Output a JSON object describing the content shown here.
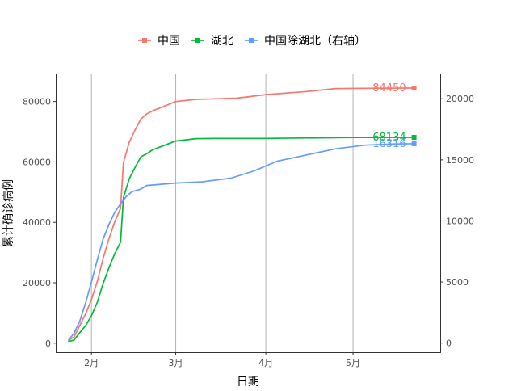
{
  "chart_data": {
    "type": "line",
    "title": "",
    "xlabel": "日期",
    "ylabel": "累计确诊病例",
    "x_range": [
      "2020-01-20",
      "2020-05-31"
    ],
    "x_ticks": [
      {
        "date": "2020-02-01",
        "label": "2月"
      },
      {
        "date": "2020-03-01",
        "label": "3月"
      },
      {
        "date": "2020-04-01",
        "label": "4月"
      },
      {
        "date": "2020-05-01",
        "label": "5月"
      }
    ],
    "ylim_left": [
      -3000,
      89000
    ],
    "yticks_left": [
      0,
      20000,
      40000,
      60000,
      80000
    ],
    "ylim_right": [
      -750,
      22000
    ],
    "yticks_right": [
      0,
      5000,
      10000,
      15000,
      20000
    ],
    "grid": {
      "vertical_major": true,
      "horizontal": false
    },
    "legend": {
      "position": "top",
      "labels": [
        "中国",
        "湖北",
        "中国除湖北（右轴）"
      ]
    },
    "colors": {
      "china": "#F8766D",
      "hubei": "#00BA38",
      "ex_hubei": "#619CFF"
    },
    "series": [
      {
        "name": "中国",
        "axis": "left",
        "color": "#F8766D",
        "end_label": "84450",
        "points": [
          [
            "2020-01-24",
            900
          ],
          [
            "2020-01-26",
            2000
          ],
          [
            "2020-01-28",
            5900
          ],
          [
            "2020-01-30",
            9700
          ],
          [
            "2020-02-01",
            14400
          ],
          [
            "2020-02-03",
            20400
          ],
          [
            "2020-02-05",
            28000
          ],
          [
            "2020-02-07",
            34500
          ],
          [
            "2020-02-09",
            40200
          ],
          [
            "2020-02-11",
            44600
          ],
          [
            "2020-02-12",
            59800
          ],
          [
            "2020-02-14",
            66500
          ],
          [
            "2020-02-16",
            70600
          ],
          [
            "2020-02-18",
            74200
          ],
          [
            "2020-02-20",
            75900
          ],
          [
            "2020-02-22",
            76900
          ],
          [
            "2020-02-25",
            78000
          ],
          [
            "2020-03-01",
            80000
          ],
          [
            "2020-03-08",
            80700
          ],
          [
            "2020-03-15",
            80900
          ],
          [
            "2020-03-22",
            81100
          ],
          [
            "2020-04-01",
            82300
          ],
          [
            "2020-04-15",
            83300
          ],
          [
            "2020-04-25",
            84300
          ],
          [
            "2020-05-10",
            84400
          ],
          [
            "2020-05-22",
            84450
          ]
        ]
      },
      {
        "name": "湖北",
        "axis": "left",
        "color": "#00BA38",
        "end_label": "68134",
        "points": [
          [
            "2020-01-24",
            550
          ],
          [
            "2020-01-26",
            1000
          ],
          [
            "2020-01-28",
            3500
          ],
          [
            "2020-01-30",
            5800
          ],
          [
            "2020-02-01",
            9100
          ],
          [
            "2020-02-03",
            13500
          ],
          [
            "2020-02-05",
            19700
          ],
          [
            "2020-02-07",
            24900
          ],
          [
            "2020-02-09",
            29600
          ],
          [
            "2020-02-11",
            33400
          ],
          [
            "2020-02-12",
            48200
          ],
          [
            "2020-02-14",
            54400
          ],
          [
            "2020-02-16",
            58200
          ],
          [
            "2020-02-18",
            61700
          ],
          [
            "2020-02-20",
            62700
          ],
          [
            "2020-02-22",
            64000
          ],
          [
            "2020-02-25",
            65100
          ],
          [
            "2020-03-01",
            66900
          ],
          [
            "2020-03-08",
            67700
          ],
          [
            "2020-03-15",
            67800
          ],
          [
            "2020-04-01",
            67800
          ],
          [
            "2020-05-01",
            68100
          ],
          [
            "2020-05-22",
            68134
          ]
        ]
      },
      {
        "name": "中国除湖北（右轴）",
        "axis": "right",
        "color": "#619CFF",
        "end_label": "16316",
        "points": [
          [
            "2020-01-24",
            200
          ],
          [
            "2020-01-26",
            800
          ],
          [
            "2020-01-28",
            1800
          ],
          [
            "2020-01-30",
            3300
          ],
          [
            "2020-02-01",
            5000
          ],
          [
            "2020-02-03",
            6800
          ],
          [
            "2020-02-05",
            8500
          ],
          [
            "2020-02-07",
            9700
          ],
          [
            "2020-02-09",
            10700
          ],
          [
            "2020-02-11",
            11400
          ],
          [
            "2020-02-13",
            12000
          ],
          [
            "2020-02-15",
            12400
          ],
          [
            "2020-02-18",
            12600
          ],
          [
            "2020-02-20",
            12900
          ],
          [
            "2020-03-01",
            13100
          ],
          [
            "2020-03-10",
            13200
          ],
          [
            "2020-03-20",
            13500
          ],
          [
            "2020-03-28",
            14100
          ],
          [
            "2020-04-05",
            14900
          ],
          [
            "2020-04-15",
            15400
          ],
          [
            "2020-04-25",
            15900
          ],
          [
            "2020-05-05",
            16200
          ],
          [
            "2020-05-15",
            16300
          ],
          [
            "2020-05-22",
            16316
          ]
        ]
      }
    ]
  }
}
